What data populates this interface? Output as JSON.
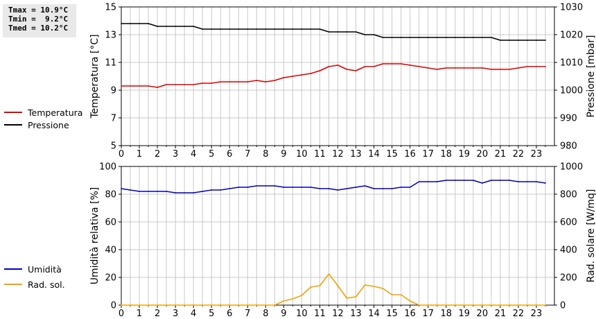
{
  "stats": {
    "tmax": "Tmax = 10.9°C",
    "tmin": "Tmin =  9.2°C",
    "tmed": "Tmed = 10.2°C"
  },
  "legend_top": [
    {
      "label": "Temperatura",
      "color": "#dd0000"
    },
    {
      "label": "Pressione",
      "color": "#000000"
    }
  ],
  "legend_bottom": [
    {
      "label": "Umidità",
      "color": "#0000bb"
    },
    {
      "label": "Rad. sol.",
      "color": "#f5a000"
    }
  ],
  "chart_data": [
    {
      "type": "line",
      "xlabel": "",
      "x_ticks": [
        "0",
        "1",
        "2",
        "3",
        "4",
        "5",
        "6",
        "7",
        "8",
        "9",
        "10",
        "11",
        "12",
        "13",
        "14",
        "15",
        "16",
        "17",
        "18",
        "19",
        "20",
        "21",
        "22",
        "23"
      ],
      "xlim": [
        0,
        24
      ],
      "y_left": {
        "label": "Temperatura [°C]",
        "lim": [
          5,
          15
        ],
        "ticks": [
          "5",
          "7",
          "9",
          "11",
          "13",
          "15"
        ]
      },
      "y_right": {
        "label": "Pressione [mbar]",
        "lim": [
          980,
          1030
        ],
        "ticks": [
          "980",
          "990",
          "1000",
          "1010",
          "1020",
          "1030"
        ]
      },
      "series": [
        {
          "name": "Temperatura",
          "axis": "left",
          "color": "#dd0000",
          "x": [
            0,
            0.5,
            1,
            1.5,
            2,
            2.5,
            3,
            3.5,
            4,
            4.5,
            5,
            5.5,
            6,
            6.5,
            7,
            7.5,
            8,
            8.5,
            9,
            9.5,
            10,
            10.5,
            11,
            11.5,
            12,
            12.5,
            13,
            13.5,
            14,
            14.5,
            15,
            15.5,
            16,
            16.5,
            17,
            17.5,
            18,
            18.5,
            19,
            19.5,
            20,
            20.5,
            21,
            21.5,
            22,
            22.5,
            23,
            23.5
          ],
          "values": [
            9.3,
            9.3,
            9.3,
            9.3,
            9.2,
            9.4,
            9.4,
            9.4,
            9.4,
            9.5,
            9.5,
            9.6,
            9.6,
            9.6,
            9.6,
            9.7,
            9.6,
            9.7,
            9.9,
            10.0,
            10.1,
            10.2,
            10.4,
            10.7,
            10.8,
            10.5,
            10.4,
            10.7,
            10.7,
            10.9,
            10.9,
            10.9,
            10.8,
            10.7,
            10.6,
            10.5,
            10.6,
            10.6,
            10.6,
            10.6,
            10.6,
            10.5,
            10.5,
            10.5,
            10.6,
            10.7,
            10.7,
            10.7
          ]
        },
        {
          "name": "Pressione",
          "axis": "right",
          "color": "#000000",
          "x": [
            0,
            0.5,
            1,
            1.5,
            2,
            2.5,
            3,
            3.5,
            4,
            4.5,
            5,
            5.5,
            6,
            6.5,
            7,
            7.5,
            8,
            8.5,
            9,
            9.5,
            10,
            10.5,
            11,
            11.5,
            12,
            12.5,
            13,
            13.5,
            14,
            14.5,
            15,
            15.5,
            16,
            16.5,
            17,
            17.5,
            18,
            18.5,
            19,
            19.5,
            20,
            20.5,
            21,
            21.5,
            22,
            22.5,
            23,
            23.5
          ],
          "values": [
            1024,
            1024,
            1024,
            1024,
            1023,
            1023,
            1023,
            1023,
            1023,
            1022,
            1022,
            1022,
            1022,
            1022,
            1022,
            1022,
            1022,
            1022,
            1022,
            1022,
            1022,
            1022,
            1022,
            1021,
            1021,
            1021,
            1021,
            1020,
            1020,
            1019,
            1019,
            1019,
            1019,
            1019,
            1019,
            1019,
            1019,
            1019,
            1019,
            1019,
            1019,
            1019,
            1018,
            1018,
            1018,
            1018,
            1018,
            1018
          ]
        }
      ]
    },
    {
      "type": "line",
      "xlabel": "",
      "x_ticks": [
        "0",
        "1",
        "2",
        "3",
        "4",
        "5",
        "6",
        "7",
        "8",
        "9",
        "10",
        "11",
        "12",
        "13",
        "14",
        "15",
        "16",
        "17",
        "18",
        "19",
        "20",
        "21",
        "22",
        "23"
      ],
      "xlim": [
        0,
        24
      ],
      "y_left": {
        "label": "Umidità relativa [%]",
        "lim": [
          0,
          100
        ],
        "ticks": [
          "0",
          "20",
          "40",
          "60",
          "80",
          "100"
        ]
      },
      "y_right": {
        "label": "Rad. solare [W/mq]",
        "lim": [
          0,
          1000
        ],
        "ticks": [
          "0",
          "200",
          "400",
          "600",
          "800",
          "1000"
        ]
      },
      "series": [
        {
          "name": "Umidità",
          "axis": "left",
          "color": "#0000bb",
          "x": [
            0,
            0.5,
            1,
            1.5,
            2,
            2.5,
            3,
            3.5,
            4,
            4.5,
            5,
            5.5,
            6,
            6.5,
            7,
            7.5,
            8,
            8.5,
            9,
            9.5,
            10,
            10.5,
            11,
            11.5,
            12,
            12.5,
            13,
            13.5,
            14,
            14.5,
            15,
            15.5,
            16,
            16.5,
            17,
            17.5,
            18,
            18.5,
            19,
            19.5,
            20,
            20.5,
            21,
            21.5,
            22,
            22.5,
            23,
            23.5
          ],
          "values": [
            84,
            83,
            82,
            82,
            82,
            82,
            81,
            81,
            81,
            82,
            83,
            83,
            84,
            85,
            85,
            86,
            86,
            86,
            85,
            85,
            85,
            85,
            84,
            84,
            83,
            84,
            85,
            86,
            84,
            84,
            84,
            85,
            85,
            89,
            89,
            89,
            90,
            90,
            90,
            90,
            88,
            90,
            90,
            90,
            89,
            89,
            89,
            88
          ]
        },
        {
          "name": "Rad. sol.",
          "axis": "right",
          "color": "#f5a000",
          "x": [
            0,
            0.5,
            1,
            1.5,
            2,
            2.5,
            3,
            3.5,
            4,
            4.5,
            5,
            5.5,
            6,
            6.5,
            7,
            7.5,
            8,
            8.5,
            9,
            9.5,
            10,
            10.5,
            11,
            11.5,
            12,
            12.5,
            13,
            13.5,
            14,
            14.5,
            15,
            15.5,
            16,
            16.5,
            17,
            17.5,
            18,
            18.5,
            19,
            19.5,
            20,
            20.5,
            21,
            21.5,
            22,
            22.5,
            23,
            23.5
          ],
          "values": [
            0,
            0,
            0,
            0,
            0,
            0,
            0,
            0,
            0,
            0,
            0,
            0,
            0,
            0,
            0,
            0,
            0,
            0,
            30,
            45,
            70,
            130,
            140,
            225,
            140,
            50,
            60,
            145,
            135,
            120,
            75,
            75,
            30,
            0,
            0,
            0,
            0,
            0,
            0,
            0,
            0,
            0,
            0,
            0,
            0,
            0,
            0,
            0
          ]
        }
      ]
    }
  ]
}
